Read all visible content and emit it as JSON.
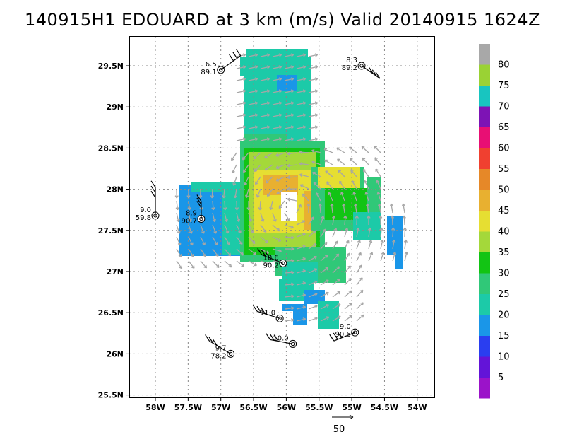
{
  "title": "140915H1 EDOUARD at 3 km (m/s) Valid 20140915 1624Z",
  "map": {
    "lat_labels": [
      "29.5N",
      "29N",
      "28.5N",
      "28N",
      "27.5N",
      "27N",
      "26.5N",
      "26N",
      "25.5N"
    ],
    "lon_labels": [
      "58W",
      "57.5W",
      "57W",
      "56.5W",
      "56W",
      "55.5W",
      "55W",
      "54.5W",
      "54W"
    ],
    "lat_values": [
      29.5,
      29,
      28.5,
      28,
      27.5,
      27,
      26.5,
      26,
      25.5
    ],
    "lon_values": [
      -58,
      -57.5,
      -57,
      -56.5,
      -56,
      -55.5,
      -55,
      -54.5,
      -54
    ],
    "grid": true
  },
  "colorbar": {
    "levels": [
      {
        "label": "5",
        "color": "#9b13c9"
      },
      {
        "label": "10",
        "color": "#6314d8"
      },
      {
        "label": "15",
        "color": "#2a3ef0"
      },
      {
        "label": "20",
        "color": "#1a96e8"
      },
      {
        "label": "25",
        "color": "#1ccaa8"
      },
      {
        "label": "30",
        "color": "#30c878"
      },
      {
        "label": "35",
        "color": "#12c414"
      },
      {
        "label": "40",
        "color": "#a4d83a"
      },
      {
        "label": "45",
        "color": "#e6de32"
      },
      {
        "label": "50",
        "color": "#e8b030"
      },
      {
        "label": "55",
        "color": "#e68828"
      },
      {
        "label": "60",
        "color": "#f04030"
      },
      {
        "label": "65",
        "color": "#e80f74"
      },
      {
        "label": "70",
        "color": "#7d13b5"
      },
      {
        "label": "75",
        "color": "#18c5c0"
      },
      {
        "label": "80",
        "color": "#9ad234"
      }
    ],
    "top_color": "#a8a8a8"
  },
  "stations": [
    {
      "id": "6.5",
      "val": "89.1",
      "lon": -57.0,
      "lat": 29.45
    },
    {
      "id": "8.3",
      "val": "89.2",
      "lon": -54.85,
      "lat": 29.5
    },
    {
      "id": "9.0",
      "val": "59.8",
      "lon": -58.0,
      "lat": 27.68
    },
    {
      "id": "8.9",
      "val": "90.7",
      "lon": -57.3,
      "lat": 27.64
    },
    {
      "id": "10.6",
      "val": "90.2",
      "lon": -56.05,
      "lat": 27.1
    },
    {
      "id": "11.0",
      "val": "",
      "lon": -56.1,
      "lat": 26.43
    },
    {
      "id": "10.0",
      "val": "",
      "lon": -55.9,
      "lat": 26.12
    },
    {
      "id": "9.0",
      "val": "90.6",
      "lon": -54.95,
      "lat": 26.26
    },
    {
      "id": "9.7",
      "val": "78.2",
      "lon": -56.85,
      "lat": 26.0
    }
  ],
  "vector_scale_label": "50"
}
